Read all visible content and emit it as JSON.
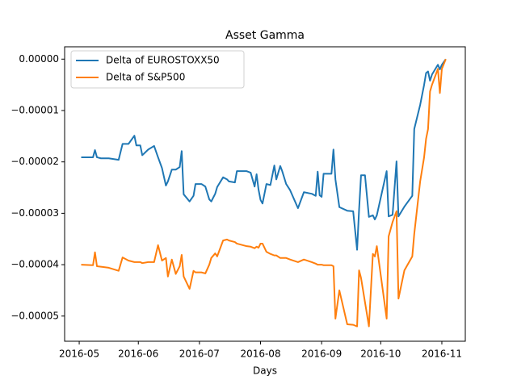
{
  "chart_data": {
    "type": "line",
    "title": "Asset Gamma",
    "x_label": "Days",
    "x": [
      1,
      7,
      8,
      9,
      11,
      15,
      20,
      22,
      25,
      28,
      29,
      31,
      32,
      35,
      38,
      40,
      42,
      44,
      45,
      47,
      49,
      51,
      52,
      53,
      56,
      58,
      59,
      62,
      64,
      66,
      67,
      69,
      70,
      73,
      75,
      76,
      79,
      80,
      85,
      87,
      89,
      90,
      91,
      92,
      93,
      95,
      97,
      99,
      100,
      102,
      103,
      105,
      107,
      111,
      114,
      118,
      120,
      121,
      122,
      123,
      124,
      128,
      129,
      130,
      132,
      136,
      139,
      141,
      142,
      143,
      145,
      147,
      149,
      150,
      151,
      156,
      157,
      159,
      161,
      162,
      165,
      169,
      170,
      173,
      175,
      176,
      177,
      178,
      179,
      182,
      183,
      184,
      186
    ],
    "series": [
      {
        "name": "Delta of EUROSTOXX50",
        "color": "#1f77b4",
        "values": [
          -1.91e-05,
          -1.91e-05,
          -1.77e-05,
          -1.91e-05,
          -1.93e-05,
          -1.93e-05,
          -1.96e-05,
          -1.65e-05,
          -1.65e-05,
          -1.49e-05,
          -1.68e-05,
          -1.68e-05,
          -1.87e-05,
          -1.76e-05,
          -1.69e-05,
          -1.91e-05,
          -2.12e-05,
          -2.46e-05,
          -2.38e-05,
          -2.15e-05,
          -2.15e-05,
          -2.1e-05,
          -1.79e-05,
          -2.63e-05,
          -2.77e-05,
          -2.66e-05,
          -2.43e-05,
          -2.43e-05,
          -2.48e-05,
          -2.73e-05,
          -2.77e-05,
          -2.62e-05,
          -2.49e-05,
          -2.3e-05,
          -2.34e-05,
          -2.38e-05,
          -2.4e-05,
          -2.18e-05,
          -2.18e-05,
          -2.21e-05,
          -2.48e-05,
          -2.24e-05,
          -2.54e-05,
          -2.74e-05,
          -2.81e-05,
          -2.43e-05,
          -2.45e-05,
          -2.07e-05,
          -2.34e-05,
          -2.08e-05,
          -2.18e-05,
          -2.43e-05,
          -2.55e-05,
          -2.9e-05,
          -2.59e-05,
          -2.62e-05,
          -2.66e-05,
          -2.19e-05,
          -2.65e-05,
          -2.68e-05,
          -2.23e-05,
          -2.23e-05,
          -1.76e-05,
          -2.34e-05,
          -2.88e-05,
          -2.95e-05,
          -2.96e-05,
          -3.71e-05,
          -2.93e-05,
          -2.26e-05,
          -2.26e-05,
          -3.07e-05,
          -3.04e-05,
          -3.12e-05,
          -3.04e-05,
          -2.18e-05,
          -3.06e-05,
          -3.03e-05,
          -1.99e-05,
          -3.06e-05,
          -2.87e-05,
          -2.66e-05,
          -1.36e-05,
          -8.9e-06,
          -5e-06,
          -2.7e-06,
          -2.4e-06,
          -4.2e-06,
          -3e-06,
          -1.1e-06,
          -2e-06,
          -1.1e-06,
          0
        ]
      },
      {
        "name": "Delta of S&P500",
        "color": "#ff7f0e",
        "values": [
          -4e-05,
          -4.01e-05,
          -3.76e-05,
          -4.03e-05,
          -4.04e-05,
          -4.06e-05,
          -4.12e-05,
          -3.86e-05,
          -3.92e-05,
          -3.95e-05,
          -3.95e-05,
          -3.95e-05,
          -3.97e-05,
          -3.95e-05,
          -3.95e-05,
          -3.62e-05,
          -3.92e-05,
          -3.87e-05,
          -4.23e-05,
          -3.9e-05,
          -4.18e-05,
          -4.03e-05,
          -3.81e-05,
          -4.23e-05,
          -4.47e-05,
          -4.12e-05,
          -4.15e-05,
          -4.15e-05,
          -4.17e-05,
          -4e-05,
          -3.87e-05,
          -3.78e-05,
          -3.84e-05,
          -3.53e-05,
          -3.51e-05,
          -3.53e-05,
          -3.56e-05,
          -3.59e-05,
          -3.64e-05,
          -3.65e-05,
          -3.68e-05,
          -3.65e-05,
          -3.67e-05,
          -3.59e-05,
          -3.59e-05,
          -3.75e-05,
          -3.79e-05,
          -3.82e-05,
          -3.82e-05,
          -3.87e-05,
          -3.87e-05,
          -3.87e-05,
          -3.9e-05,
          -3.95e-05,
          -3.9e-05,
          -3.95e-05,
          -3.98e-05,
          -4e-05,
          -4e-05,
          -4e-05,
          -4.01e-05,
          -4.01e-05,
          -4.03e-05,
          -5.05e-05,
          -4.5e-05,
          -5.16e-05,
          -5.17e-05,
          -5.2e-05,
          -4.11e-05,
          -4.26e-05,
          -4.73e-05,
          -5.2e-05,
          -3.79e-05,
          -3.84e-05,
          -3.64e-05,
          -5.05e-05,
          -3.45e-05,
          -3.17e-05,
          -2.96e-05,
          -4.66e-05,
          -4.11e-05,
          -3.84e-05,
          -3.4e-05,
          -2.38e-05,
          -1.91e-05,
          -1.55e-05,
          -1.36e-05,
          -6.3e-06,
          -5e-06,
          -1.9e-06,
          -6.6e-06,
          -1.9e-06,
          0
        ]
      }
    ],
    "xlim": [
      -7.4,
      195.9
    ],
    "xticks": [
      {
        "value": 0,
        "label": "2016-05"
      },
      {
        "value": 30,
        "label": "2016-06"
      },
      {
        "value": 61,
        "label": "2016-07"
      },
      {
        "value": 92,
        "label": "2016-08"
      },
      {
        "value": 123,
        "label": "2016-09"
      },
      {
        "value": 153,
        "label": "2016-10"
      },
      {
        "value": 184,
        "label": "2016-11"
      }
    ],
    "ylim": [
      -5.49e-05,
      2.4e-06
    ],
    "yticks": [
      {
        "value": 0,
        "label": "0.00000"
      },
      {
        "value": -1e-05,
        "label": "−0.00001"
      },
      {
        "value": -2e-05,
        "label": "−0.00002"
      },
      {
        "value": -3e-05,
        "label": "−0.00003"
      },
      {
        "value": -4e-05,
        "label": "−0.00004"
      },
      {
        "value": -5e-05,
        "label": "−0.00005"
      }
    ],
    "legend": "upper left",
    "grid": false
  }
}
